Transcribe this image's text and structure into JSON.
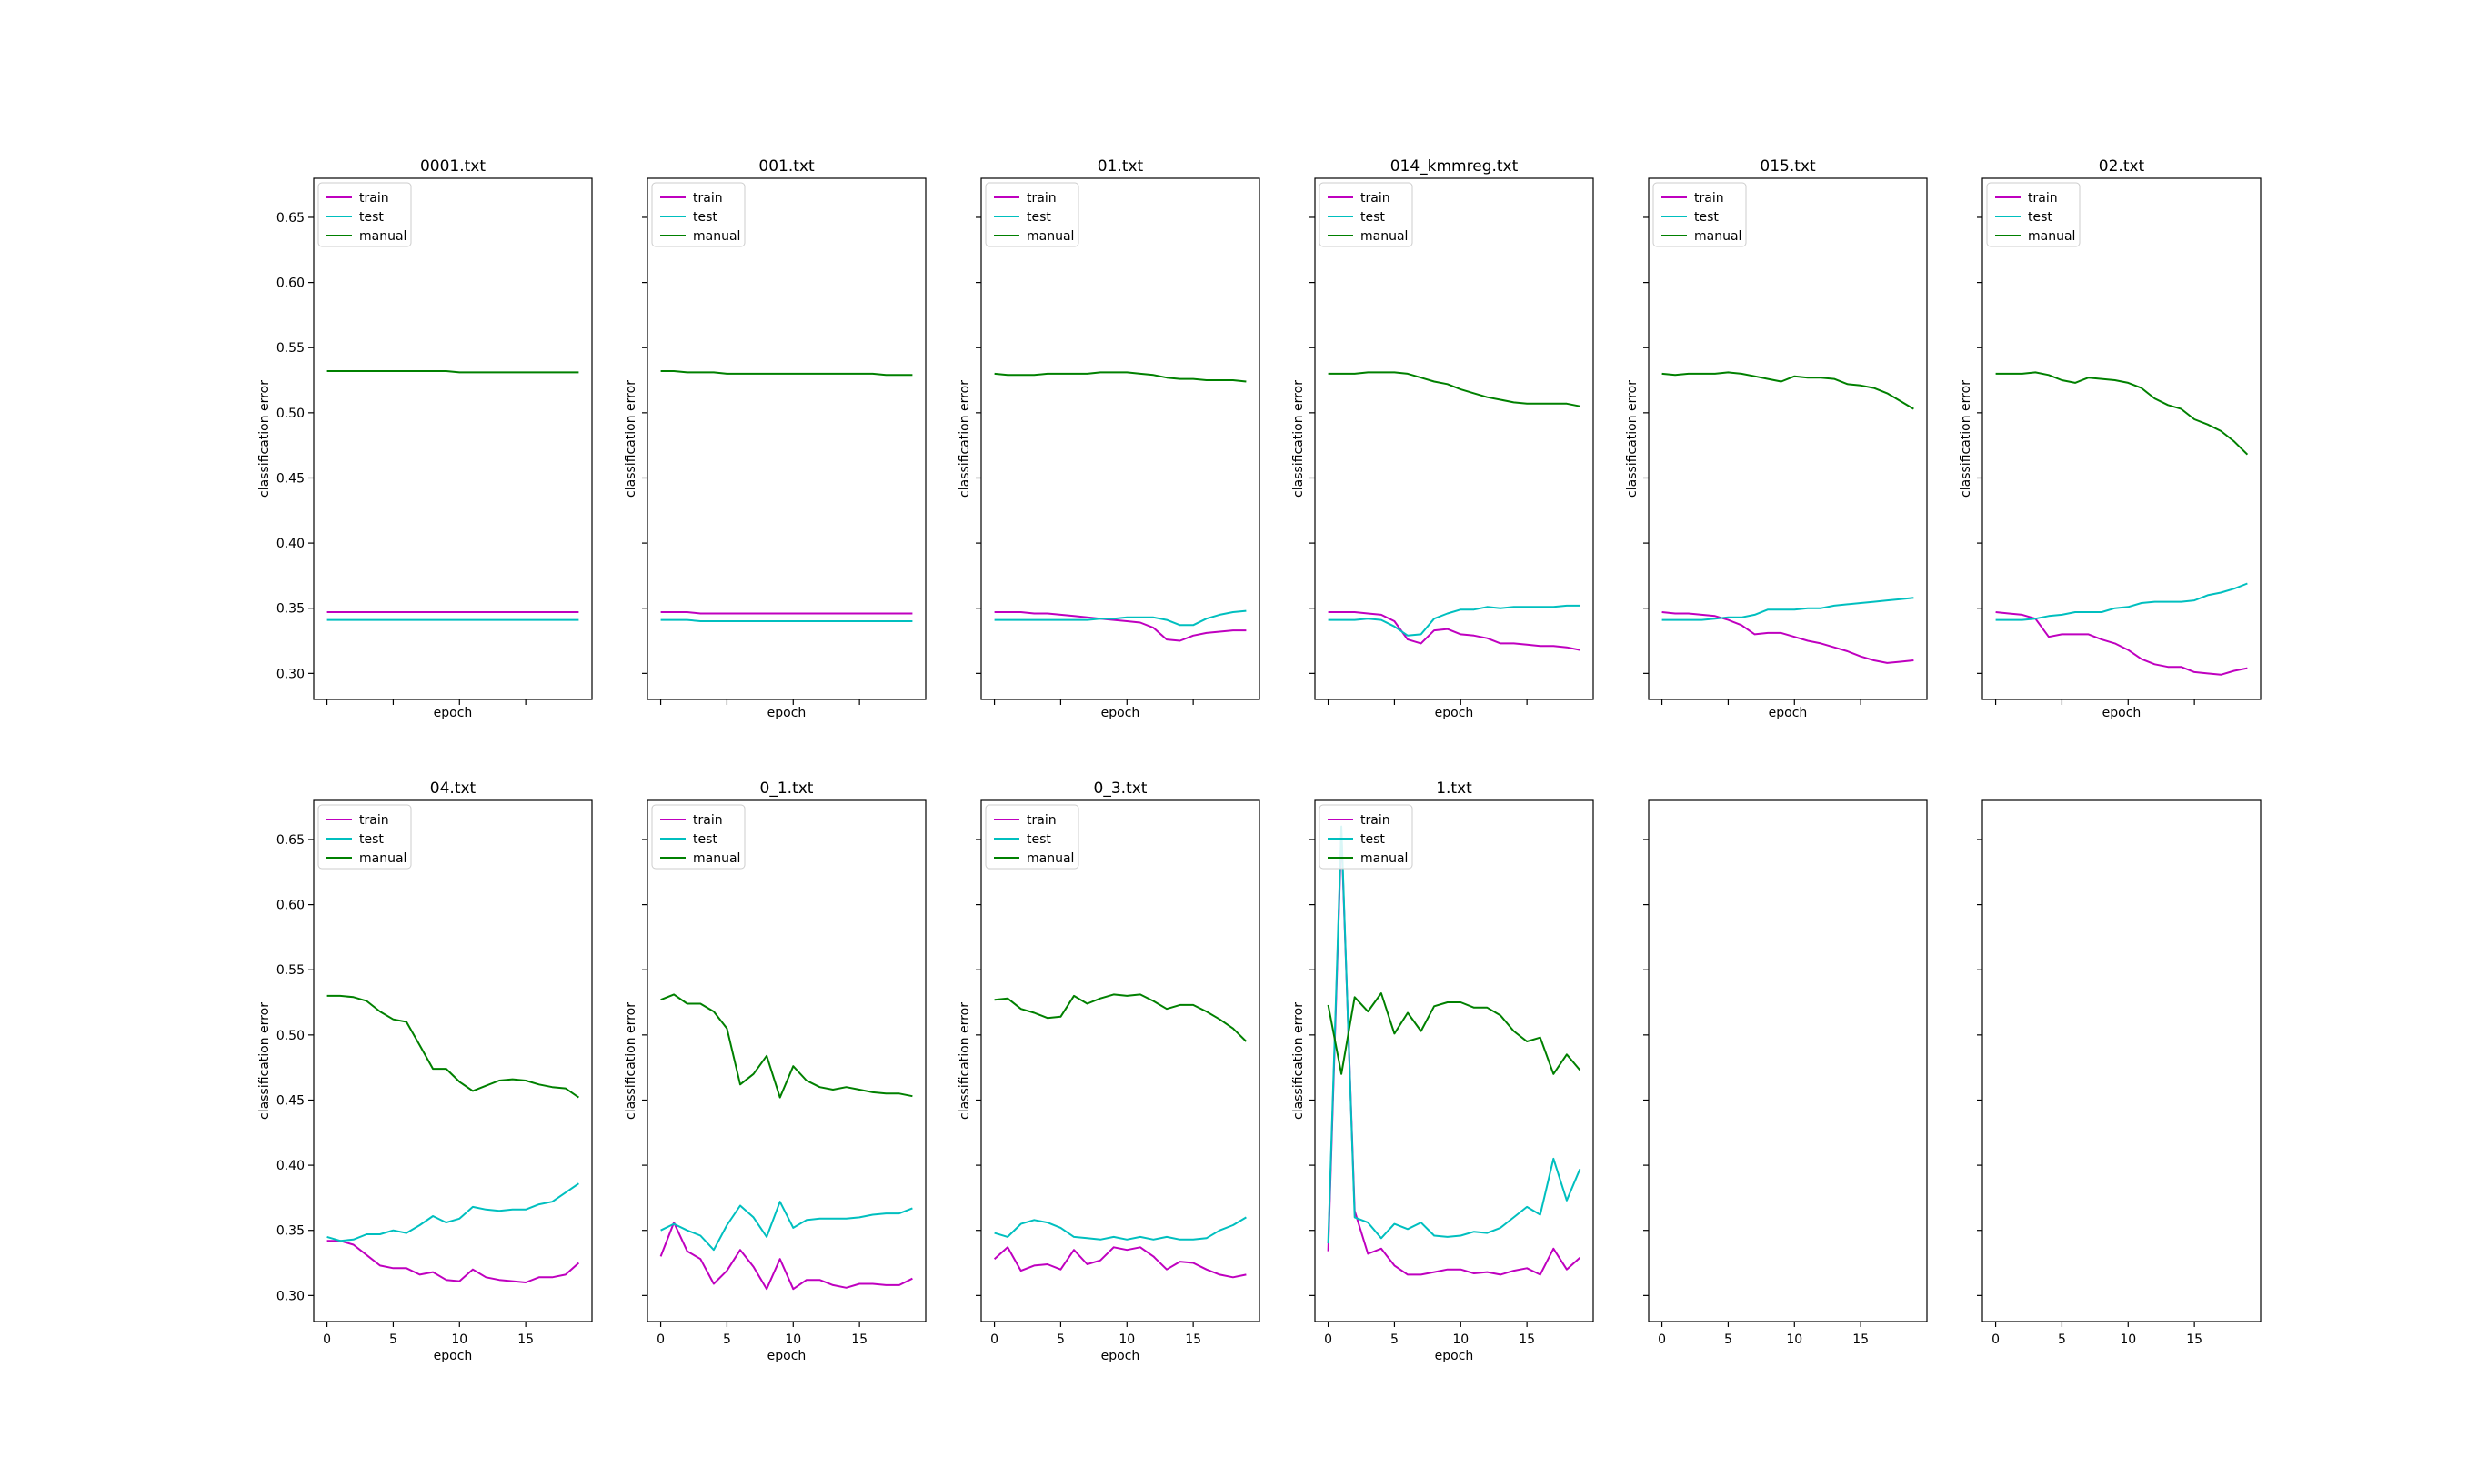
{
  "figure": {
    "background": "#ffffff",
    "series_colors": {
      "train": "#bf00bf",
      "test": "#00bfbf",
      "manual": "#008000"
    }
  },
  "chart_data": [
    {
      "type": "line",
      "title": "0001.txt",
      "xlabel": "epoch",
      "ylabel": "classification error",
      "xlim": [
        -1,
        20
      ],
      "ylim": [
        0.28,
        0.68
      ],
      "xticks": [],
      "yticks": [
        0.3,
        0.35,
        0.4,
        0.45,
        0.5,
        0.55,
        0.6,
        0.65
      ],
      "legend": {
        "loc": "upper left",
        "entries": [
          "train",
          "test",
          "manual"
        ]
      },
      "series": [
        {
          "name": "train",
          "values": [
            0.347,
            0.347,
            0.347,
            0.347,
            0.347,
            0.347,
            0.347,
            0.347,
            0.347,
            0.347,
            0.347,
            0.347,
            0.347,
            0.347,
            0.347,
            0.347,
            0.347,
            0.347,
            0.347,
            0.347
          ]
        },
        {
          "name": "test",
          "values": [
            0.341,
            0.341,
            0.341,
            0.341,
            0.341,
            0.341,
            0.341,
            0.341,
            0.341,
            0.341,
            0.341,
            0.341,
            0.341,
            0.341,
            0.341,
            0.341,
            0.341,
            0.341,
            0.341,
            0.341
          ]
        },
        {
          "name": "manual",
          "values": [
            0.532,
            0.532,
            0.532,
            0.532,
            0.532,
            0.532,
            0.532,
            0.532,
            0.532,
            0.532,
            0.531,
            0.531,
            0.531,
            0.531,
            0.531,
            0.531,
            0.531,
            0.531,
            0.531,
            0.531
          ]
        }
      ]
    },
    {
      "type": "line",
      "title": "001.txt",
      "xlabel": "epoch",
      "ylabel": "classification error",
      "xlim": [
        -1,
        20
      ],
      "ylim": [
        0.28,
        0.68
      ],
      "xticks": [],
      "yticks": [],
      "legend": {
        "loc": "upper left",
        "entries": [
          "train",
          "test",
          "manual"
        ]
      },
      "series": [
        {
          "name": "train",
          "values": [
            0.347,
            0.347,
            0.347,
            0.346,
            0.346,
            0.346,
            0.346,
            0.346,
            0.346,
            0.346,
            0.346,
            0.346,
            0.346,
            0.346,
            0.346,
            0.346,
            0.346,
            0.346,
            0.346,
            0.346
          ]
        },
        {
          "name": "test",
          "values": [
            0.341,
            0.341,
            0.341,
            0.34,
            0.34,
            0.34,
            0.34,
            0.34,
            0.34,
            0.34,
            0.34,
            0.34,
            0.34,
            0.34,
            0.34,
            0.34,
            0.34,
            0.34,
            0.34,
            0.34
          ]
        },
        {
          "name": "manual",
          "values": [
            0.532,
            0.532,
            0.531,
            0.531,
            0.531,
            0.53,
            0.53,
            0.53,
            0.53,
            0.53,
            0.53,
            0.53,
            0.53,
            0.53,
            0.53,
            0.53,
            0.53,
            0.529,
            0.529,
            0.529
          ]
        }
      ]
    },
    {
      "type": "line",
      "title": "01.txt",
      "xlabel": "epoch",
      "ylabel": "classification error",
      "xlim": [
        -1,
        20
      ],
      "ylim": [
        0.28,
        0.68
      ],
      "xticks": [],
      "yticks": [],
      "legend": {
        "loc": "upper left",
        "entries": [
          "train",
          "test",
          "manual"
        ]
      },
      "series": [
        {
          "name": "train",
          "values": [
            0.347,
            0.347,
            0.347,
            0.346,
            0.346,
            0.345,
            0.344,
            0.343,
            0.342,
            0.341,
            0.34,
            0.339,
            0.335,
            0.326,
            0.325,
            0.329,
            0.331,
            0.332,
            0.333,
            0.333
          ]
        },
        {
          "name": "test",
          "values": [
            0.341,
            0.341,
            0.341,
            0.341,
            0.341,
            0.341,
            0.341,
            0.341,
            0.342,
            0.342,
            0.343,
            0.343,
            0.343,
            0.341,
            0.337,
            0.337,
            0.342,
            0.345,
            0.347,
            0.348
          ]
        },
        {
          "name": "manual",
          "values": [
            0.53,
            0.529,
            0.529,
            0.529,
            0.53,
            0.53,
            0.53,
            0.53,
            0.531,
            0.531,
            0.531,
            0.53,
            0.529,
            0.527,
            0.526,
            0.526,
            0.525,
            0.525,
            0.525,
            0.524
          ]
        }
      ]
    },
    {
      "type": "line",
      "title": "014_kmmreg.txt",
      "xlabel": "epoch",
      "ylabel": "classification error",
      "xlim": [
        -1,
        20
      ],
      "ylim": [
        0.28,
        0.68
      ],
      "xticks": [],
      "yticks": [],
      "legend": {
        "loc": "upper left",
        "entries": [
          "train",
          "test",
          "manual"
        ]
      },
      "series": [
        {
          "name": "train",
          "values": [
            0.347,
            0.347,
            0.347,
            0.346,
            0.345,
            0.34,
            0.326,
            0.323,
            0.333,
            0.334,
            0.33,
            0.329,
            0.327,
            0.323,
            0.323,
            0.322,
            0.321,
            0.321,
            0.32,
            0.318
          ]
        },
        {
          "name": "test",
          "values": [
            0.341,
            0.341,
            0.341,
            0.342,
            0.341,
            0.336,
            0.329,
            0.33,
            0.342,
            0.346,
            0.349,
            0.349,
            0.351,
            0.35,
            0.351,
            0.351,
            0.351,
            0.351,
            0.352,
            0.352
          ]
        },
        {
          "name": "manual",
          "values": [
            0.53,
            0.53,
            0.53,
            0.531,
            0.531,
            0.531,
            0.53,
            0.527,
            0.524,
            0.522,
            0.518,
            0.515,
            0.512,
            0.51,
            0.508,
            0.507,
            0.507,
            0.507,
            0.507,
            0.505
          ]
        }
      ]
    },
    {
      "type": "line",
      "title": "015.txt",
      "xlabel": "epoch",
      "ylabel": "classification error",
      "xlim": [
        -1,
        20
      ],
      "ylim": [
        0.28,
        0.68
      ],
      "xticks": [],
      "yticks": [],
      "legend": {
        "loc": "upper left",
        "entries": [
          "train",
          "test",
          "manual"
        ]
      },
      "series": [
        {
          "name": "train",
          "values": [
            0.347,
            0.346,
            0.346,
            0.345,
            0.344,
            0.341,
            0.337,
            0.33,
            0.331,
            0.331,
            0.328,
            0.325,
            0.323,
            0.32,
            0.317,
            0.313,
            0.31,
            0.308,
            0.309,
            0.31
          ]
        },
        {
          "name": "test",
          "values": [
            0.341,
            0.341,
            0.341,
            0.341,
            0.342,
            0.343,
            0.343,
            0.345,
            0.349,
            0.349,
            0.349,
            0.35,
            0.35,
            0.352,
            0.353,
            0.354,
            0.355,
            0.356,
            0.357,
            0.358
          ]
        },
        {
          "name": "manual",
          "values": [
            0.53,
            0.529,
            0.53,
            0.53,
            0.53,
            0.531,
            0.53,
            0.528,
            0.526,
            0.524,
            0.528,
            0.527,
            0.527,
            0.526,
            0.522,
            0.521,
            0.519,
            0.515,
            0.509,
            0.503
          ]
        }
      ]
    },
    {
      "type": "line",
      "title": "02.txt",
      "xlabel": "epoch",
      "ylabel": "classification error",
      "xlim": [
        -1,
        20
      ],
      "ylim": [
        0.28,
        0.68
      ],
      "xticks": [],
      "yticks": [],
      "legend": {
        "loc": "upper left",
        "entries": [
          "train",
          "test",
          "manual"
        ]
      },
      "series": [
        {
          "name": "train",
          "values": [
            0.347,
            0.346,
            0.345,
            0.342,
            0.328,
            0.33,
            0.33,
            0.33,
            0.326,
            0.323,
            0.318,
            0.311,
            0.307,
            0.305,
            0.305,
            0.301,
            0.3,
            0.299,
            0.302,
            0.304
          ]
        },
        {
          "name": "test",
          "values": [
            0.341,
            0.341,
            0.341,
            0.342,
            0.344,
            0.345,
            0.347,
            0.347,
            0.347,
            0.35,
            0.351,
            0.354,
            0.355,
            0.355,
            0.355,
            0.356,
            0.36,
            0.362,
            0.365,
            0.369
          ]
        },
        {
          "name": "manual",
          "values": [
            0.53,
            0.53,
            0.53,
            0.531,
            0.529,
            0.525,
            0.523,
            0.527,
            0.526,
            0.525,
            0.523,
            0.519,
            0.511,
            0.506,
            0.503,
            0.495,
            0.491,
            0.486,
            0.478,
            0.468
          ]
        }
      ]
    },
    {
      "type": "line",
      "title": "04.txt",
      "xlabel": "epoch",
      "ylabel": "classification error",
      "xlim": [
        -1,
        20
      ],
      "ylim": [
        0.28,
        0.68
      ],
      "xticks": [
        0,
        5,
        10,
        15
      ],
      "yticks": [
        0.3,
        0.35,
        0.4,
        0.45,
        0.5,
        0.55,
        0.6,
        0.65
      ],
      "legend": {
        "loc": "upper left",
        "entries": [
          "train",
          "test",
          "manual"
        ]
      },
      "series": [
        {
          "name": "train",
          "values": [
            0.342,
            0.342,
            0.339,
            0.331,
            0.323,
            0.321,
            0.321,
            0.316,
            0.318,
            0.312,
            0.311,
            0.32,
            0.314,
            0.312,
            0.311,
            0.31,
            0.314,
            0.314,
            0.316,
            0.325
          ]
        },
        {
          "name": "test",
          "values": [
            0.345,
            0.342,
            0.343,
            0.347,
            0.347,
            0.35,
            0.348,
            0.354,
            0.361,
            0.356,
            0.359,
            0.368,
            0.366,
            0.365,
            0.366,
            0.366,
            0.37,
            0.372,
            0.379,
            0.386
          ]
        },
        {
          "name": "manual",
          "values": [
            0.53,
            0.53,
            0.529,
            0.526,
            0.518,
            0.512,
            0.51,
            0.492,
            0.474,
            0.474,
            0.464,
            0.457,
            0.461,
            0.465,
            0.466,
            0.465,
            0.462,
            0.46,
            0.459,
            0.452
          ]
        }
      ]
    },
    {
      "type": "line",
      "title": "0_1.txt",
      "xlabel": "epoch",
      "ylabel": "classification error",
      "xlim": [
        -1,
        20
      ],
      "ylim": [
        0.28,
        0.68
      ],
      "xticks": [
        0,
        5,
        10,
        15
      ],
      "yticks": [],
      "legend": {
        "loc": "upper left",
        "entries": [
          "train",
          "test",
          "manual"
        ]
      },
      "series": [
        {
          "name": "train",
          "values": [
            0.33,
            0.356,
            0.334,
            0.328,
            0.309,
            0.319,
            0.335,
            0.322,
            0.305,
            0.328,
            0.305,
            0.312,
            0.312,
            0.308,
            0.306,
            0.309,
            0.309,
            0.308,
            0.308,
            0.313
          ]
        },
        {
          "name": "test",
          "values": [
            0.35,
            0.355,
            0.35,
            0.346,
            0.335,
            0.354,
            0.369,
            0.36,
            0.345,
            0.372,
            0.352,
            0.358,
            0.359,
            0.359,
            0.359,
            0.36,
            0.362,
            0.363,
            0.363,
            0.367
          ]
        },
        {
          "name": "manual",
          "values": [
            0.527,
            0.531,
            0.524,
            0.524,
            0.518,
            0.505,
            0.462,
            0.47,
            0.484,
            0.452,
            0.476,
            0.465,
            0.46,
            0.458,
            0.46,
            0.458,
            0.456,
            0.455,
            0.455,
            0.453
          ]
        }
      ]
    },
    {
      "type": "line",
      "title": "0_3.txt",
      "xlabel": "epoch",
      "ylabel": "classification error",
      "xlim": [
        -1,
        20
      ],
      "ylim": [
        0.28,
        0.68
      ],
      "xticks": [
        0,
        5,
        10,
        15
      ],
      "yticks": [],
      "legend": {
        "loc": "upper left",
        "entries": [
          "train",
          "test",
          "manual"
        ]
      },
      "series": [
        {
          "name": "train",
          "values": [
            0.328,
            0.337,
            0.319,
            0.323,
            0.324,
            0.32,
            0.335,
            0.324,
            0.327,
            0.337,
            0.335,
            0.337,
            0.33,
            0.32,
            0.326,
            0.325,
            0.32,
            0.316,
            0.314,
            0.316
          ]
        },
        {
          "name": "test",
          "values": [
            0.348,
            0.345,
            0.355,
            0.358,
            0.356,
            0.352,
            0.345,
            0.344,
            0.343,
            0.345,
            0.343,
            0.345,
            0.343,
            0.345,
            0.343,
            0.343,
            0.344,
            0.35,
            0.354,
            0.36
          ]
        },
        {
          "name": "manual",
          "values": [
            0.527,
            0.528,
            0.52,
            0.517,
            0.513,
            0.514,
            0.53,
            0.524,
            0.528,
            0.531,
            0.53,
            0.531,
            0.526,
            0.52,
            0.523,
            0.523,
            0.518,
            0.512,
            0.505,
            0.495
          ]
        }
      ]
    },
    {
      "type": "line",
      "title": "1.txt",
      "xlabel": "epoch",
      "ylabel": "classification error",
      "xlim": [
        -1,
        20
      ],
      "ylim": [
        0.28,
        0.68
      ],
      "xticks": [
        0,
        5,
        10,
        15
      ],
      "yticks": [],
      "legend": {
        "loc": "upper left",
        "entries": [
          "train",
          "test",
          "manual"
        ]
      },
      "series": [
        {
          "name": "train",
          "values": [
            0.334,
            0.655,
            0.365,
            0.332,
            0.336,
            0.323,
            0.316,
            0.316,
            0.318,
            0.32,
            0.32,
            0.317,
            0.318,
            0.316,
            0.319,
            0.321,
            0.316,
            0.336,
            0.32,
            0.329
          ]
        },
        {
          "name": "test",
          "values": [
            0.34,
            0.66,
            0.36,
            0.356,
            0.344,
            0.355,
            0.351,
            0.356,
            0.346,
            0.345,
            0.346,
            0.349,
            0.348,
            0.352,
            0.36,
            0.368,
            0.362,
            0.405,
            0.373,
            0.397
          ]
        },
        {
          "name": "manual",
          "values": [
            0.523,
            0.47,
            0.529,
            0.518,
            0.532,
            0.501,
            0.517,
            0.503,
            0.522,
            0.525,
            0.525,
            0.521,
            0.521,
            0.515,
            0.503,
            0.495,
            0.498,
            0.47,
            0.485,
            0.473
          ]
        }
      ]
    },
    {
      "type": "line",
      "title": "",
      "xlabel": "",
      "ylabel": "",
      "xlim": [
        -1,
        20
      ],
      "ylim": [
        0.28,
        0.68
      ],
      "xticks": [
        0,
        5,
        10,
        15
      ],
      "yticks": [],
      "series": []
    },
    {
      "type": "line",
      "title": "",
      "xlabel": "",
      "ylabel": "",
      "xlim": [
        -1,
        20
      ],
      "ylim": [
        0.28,
        0.68
      ],
      "xticks": [
        0,
        5,
        10,
        15
      ],
      "yticks": [],
      "series": []
    }
  ]
}
